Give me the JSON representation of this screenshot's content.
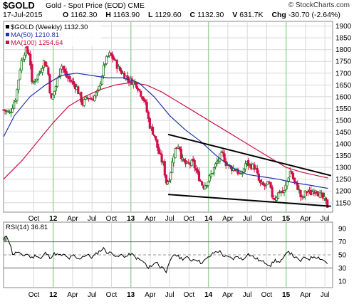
{
  "header": {
    "symbol": "$GOLD",
    "description": "Gold - Spot Price (EOD)",
    "exchange": "CME",
    "brand": "© StockCharts.com",
    "date": "17-Jul-2015",
    "open_label": "O",
    "open": "1162.30",
    "high_label": "H",
    "high": "1163.90",
    "low_label": "L",
    "low": "1129.60",
    "close_label": "C",
    "close": "1132.30",
    "volume_label": "V",
    "volume": "631.7K",
    "change_label": "Chg",
    "change": "-30.70 (-2.64%)"
  },
  "colors": {
    "bull": "#1a7a1a",
    "bear": "#d0104c",
    "ma50": "#2233aa",
    "ma100": "#cc1144",
    "grid": "#d8d8d8",
    "vgrid": "#9fd59f",
    "rsi_fill_hi": "#6a9a6a",
    "rsi_fill_lo": "#9a7a9a"
  },
  "chart_data": [
    {
      "type": "candlestick",
      "title": "$GOLD (Weekly) 1132.30",
      "legend": [
        {
          "name": "$GOLD (Weekly)",
          "value": "1132.30",
          "color": "#000000"
        },
        {
          "name": "MA(50)",
          "value": "1210.81",
          "color": "#2233aa"
        },
        {
          "name": "MA(100)",
          "value": "1254.64",
          "color": "#cc1144"
        }
      ],
      "legend_position": "top-left",
      "y_axis_position": "right",
      "ylim": [
        1110,
        1920
      ],
      "yticks": [
        1150,
        1200,
        1250,
        1300,
        1350,
        1400,
        1450,
        1500,
        1550,
        1600,
        1650,
        1700,
        1750,
        1800,
        1850,
        1900
      ],
      "xlim": [
        2011.36,
        2015.6
      ],
      "x_ticks": [
        {
          "label": "Oct",
          "t": 2011.75
        },
        {
          "label": "12",
          "t": 2012.0
        },
        {
          "label": "Apr",
          "t": 2012.25
        },
        {
          "label": "Jul",
          "t": 2012.5
        },
        {
          "label": "Oct",
          "t": 2012.75
        },
        {
          "label": "13",
          "t": 2013.0
        },
        {
          "label": "Apr",
          "t": 2013.25
        },
        {
          "label": "Jul",
          "t": 2013.5
        },
        {
          "label": "Oct",
          "t": 2013.75
        },
        {
          "label": "14",
          "t": 2014.0
        },
        {
          "label": "Apr",
          "t": 2014.25
        },
        {
          "label": "Jul",
          "t": 2014.5
        },
        {
          "label": "Oct",
          "t": 2014.75
        },
        {
          "label": "15",
          "t": 2015.0
        },
        {
          "label": "Apr",
          "t": 2015.25
        },
        {
          "label": "Jul",
          "t": 2015.5
        }
      ],
      "year_lines": [
        2012.0,
        2013.0,
        2014.0,
        2015.0
      ],
      "grid": true,
      "price_path": [
        [
          2011.36,
          1545
        ],
        [
          2011.44,
          1530
        ],
        [
          2011.52,
          1600
        ],
        [
          2011.58,
          1740
        ],
        [
          2011.64,
          1800
        ],
        [
          2011.7,
          1780
        ],
        [
          2011.72,
          1650
        ],
        [
          2011.76,
          1670
        ],
        [
          2011.82,
          1700
        ],
        [
          2011.88,
          1750
        ],
        [
          2011.93,
          1720
        ],
        [
          2011.97,
          1580
        ],
        [
          2012.03,
          1640
        ],
        [
          2012.1,
          1740
        ],
        [
          2012.16,
          1690
        ],
        [
          2012.22,
          1670
        ],
        [
          2012.3,
          1640
        ],
        [
          2012.38,
          1570
        ],
        [
          2012.44,
          1600
        ],
        [
          2012.5,
          1590
        ],
        [
          2012.58,
          1620
        ],
        [
          2012.66,
          1740
        ],
        [
          2012.72,
          1780
        ],
        [
          2012.78,
          1760
        ],
        [
          2012.84,
          1720
        ],
        [
          2012.92,
          1690
        ],
        [
          2012.98,
          1670
        ],
        [
          2013.06,
          1660
        ],
        [
          2013.12,
          1620
        ],
        [
          2013.18,
          1580
        ],
        [
          2013.24,
          1480
        ],
        [
          2013.3,
          1440
        ],
        [
          2013.36,
          1360
        ],
        [
          2013.42,
          1310
        ],
        [
          2013.46,
          1230
        ],
        [
          2013.5,
          1260
        ],
        [
          2013.56,
          1370
        ],
        [
          2013.62,
          1400
        ],
        [
          2013.66,
          1330
        ],
        [
          2013.72,
          1310
        ],
        [
          2013.8,
          1320
        ],
        [
          2013.86,
          1270
        ],
        [
          2013.93,
          1220
        ],
        [
          2013.99,
          1240
        ],
        [
          2014.05,
          1280
        ],
        [
          2014.12,
          1330
        ],
        [
          2014.18,
          1360
        ],
        [
          2014.22,
          1320
        ],
        [
          2014.28,
          1300
        ],
        [
          2014.36,
          1290
        ],
        [
          2014.42,
          1260
        ],
        [
          2014.48,
          1320
        ],
        [
          2014.53,
          1310
        ],
        [
          2014.6,
          1300
        ],
        [
          2014.66,
          1230
        ],
        [
          2014.72,
          1220
        ],
        [
          2014.78,
          1230
        ],
        [
          2014.82,
          1180
        ],
        [
          2014.86,
          1170
        ],
        [
          2014.92,
          1200
        ],
        [
          2014.97,
          1190
        ],
        [
          2015.02,
          1250
        ],
        [
          2015.06,
          1290
        ],
        [
          2015.1,
          1240
        ],
        [
          2015.16,
          1210
        ],
        [
          2015.2,
          1160
        ],
        [
          2015.26,
          1200
        ],
        [
          2015.32,
          1190
        ],
        [
          2015.38,
          1210
        ],
        [
          2015.44,
          1180
        ],
        [
          2015.5,
          1160
        ],
        [
          2015.54,
          1132
        ]
      ],
      "ma50_path": [
        [
          2011.36,
          1430
        ],
        [
          2011.5,
          1520
        ],
        [
          2011.7,
          1600
        ],
        [
          2011.9,
          1650
        ],
        [
          2012.1,
          1690
        ],
        [
          2012.3,
          1700
        ],
        [
          2012.5,
          1690
        ],
        [
          2012.7,
          1680
        ],
        [
          2012.9,
          1680
        ],
        [
          2013.1,
          1660
        ],
        [
          2013.3,
          1600
        ],
        [
          2013.5,
          1520
        ],
        [
          2013.7,
          1460
        ],
        [
          2013.9,
          1410
        ],
        [
          2014.1,
          1350
        ],
        [
          2014.3,
          1300
        ],
        [
          2014.5,
          1270
        ],
        [
          2014.7,
          1260
        ],
        [
          2014.9,
          1250
        ],
        [
          2015.1,
          1235
        ],
        [
          2015.3,
          1225
        ],
        [
          2015.54,
          1211
        ]
      ],
      "ma100_path": [
        [
          2011.36,
          1250
        ],
        [
          2011.6,
          1330
        ],
        [
          2011.8,
          1410
        ],
        [
          2012.0,
          1490
        ],
        [
          2012.2,
          1560
        ],
        [
          2012.4,
          1600
        ],
        [
          2012.6,
          1630
        ],
        [
          2012.8,
          1650
        ],
        [
          2013.0,
          1660
        ],
        [
          2013.2,
          1650
        ],
        [
          2013.4,
          1620
        ],
        [
          2013.6,
          1580
        ],
        [
          2013.8,
          1540
        ],
        [
          2014.0,
          1500
        ],
        [
          2014.2,
          1460
        ],
        [
          2014.4,
          1420
        ],
        [
          2014.6,
          1380
        ],
        [
          2014.8,
          1340
        ],
        [
          2015.0,
          1300
        ],
        [
          2015.2,
          1280
        ],
        [
          2015.4,
          1265
        ],
        [
          2015.54,
          1255
        ]
      ],
      "annotations": [
        {
          "type": "trendline",
          "from": [
            2013.48,
            1440
          ],
          "to": [
            2015.58,
            1265
          ]
        },
        {
          "type": "trendline",
          "from": [
            2013.48,
            1185
          ],
          "to": [
            2015.58,
            1135
          ]
        }
      ]
    },
    {
      "type": "line",
      "title": "RSI(14) 36.81",
      "series": [
        {
          "name": "RSI(14)",
          "value": "36.81"
        }
      ],
      "y_axis_position": "right",
      "ylim": [
        0,
        100
      ],
      "yticks": [
        10,
        30,
        50,
        70,
        90
      ],
      "reference_lines": [
        30,
        50,
        70
      ],
      "rsi_path": [
        [
          2011.36,
          72
        ],
        [
          2011.4,
          80
        ],
        [
          2011.44,
          68
        ],
        [
          2011.48,
          50
        ],
        [
          2011.54,
          55
        ],
        [
          2011.6,
          48
        ],
        [
          2011.66,
          52
        ],
        [
          2011.72,
          45
        ],
        [
          2011.78,
          50
        ],
        [
          2011.84,
          44
        ],
        [
          2011.9,
          53
        ],
        [
          2011.96,
          46
        ],
        [
          2012.02,
          52
        ],
        [
          2012.08,
          49
        ],
        [
          2012.14,
          50
        ],
        [
          2012.2,
          44
        ],
        [
          2012.26,
          49
        ],
        [
          2012.32,
          43
        ],
        [
          2012.38,
          48
        ],
        [
          2012.44,
          50
        ],
        [
          2012.5,
          46
        ],
        [
          2012.56,
          52
        ],
        [
          2012.62,
          58
        ],
        [
          2012.66,
          60
        ],
        [
          2012.7,
          52
        ],
        [
          2012.76,
          54
        ],
        [
          2012.82,
          46
        ],
        [
          2012.88,
          50
        ],
        [
          2012.94,
          47
        ],
        [
          2013.0,
          52
        ],
        [
          2013.06,
          46
        ],
        [
          2013.12,
          42
        ],
        [
          2013.18,
          38
        ],
        [
          2013.22,
          28
        ],
        [
          2013.26,
          34
        ],
        [
          2013.3,
          36
        ],
        [
          2013.34,
          40
        ],
        [
          2013.38,
          30
        ],
        [
          2013.42,
          32
        ],
        [
          2013.46,
          24
        ],
        [
          2013.5,
          38
        ],
        [
          2013.56,
          52
        ],
        [
          2013.6,
          48
        ],
        [
          2013.66,
          44
        ],
        [
          2013.72,
          46
        ],
        [
          2013.78,
          42
        ],
        [
          2013.84,
          44
        ],
        [
          2013.9,
          38
        ],
        [
          2013.96,
          42
        ],
        [
          2014.02,
          48
        ],
        [
          2014.08,
          54
        ],
        [
          2014.14,
          56
        ],
        [
          2014.2,
          48
        ],
        [
          2014.26,
          46
        ],
        [
          2014.32,
          44
        ],
        [
          2014.38,
          48
        ],
        [
          2014.44,
          42
        ],
        [
          2014.5,
          52
        ],
        [
          2014.56,
          48
        ],
        [
          2014.62,
          44
        ],
        [
          2014.68,
          40
        ],
        [
          2014.74,
          38
        ],
        [
          2014.8,
          34
        ],
        [
          2014.86,
          42
        ],
        [
          2014.92,
          38
        ],
        [
          2014.98,
          46
        ],
        [
          2015.02,
          58
        ],
        [
          2015.06,
          52
        ],
        [
          2015.12,
          46
        ],
        [
          2015.18,
          40
        ],
        [
          2015.24,
          46
        ],
        [
          2015.3,
          44
        ],
        [
          2015.36,
          48
        ],
        [
          2015.42,
          46
        ],
        [
          2015.48,
          42
        ],
        [
          2015.54,
          37
        ]
      ]
    }
  ]
}
